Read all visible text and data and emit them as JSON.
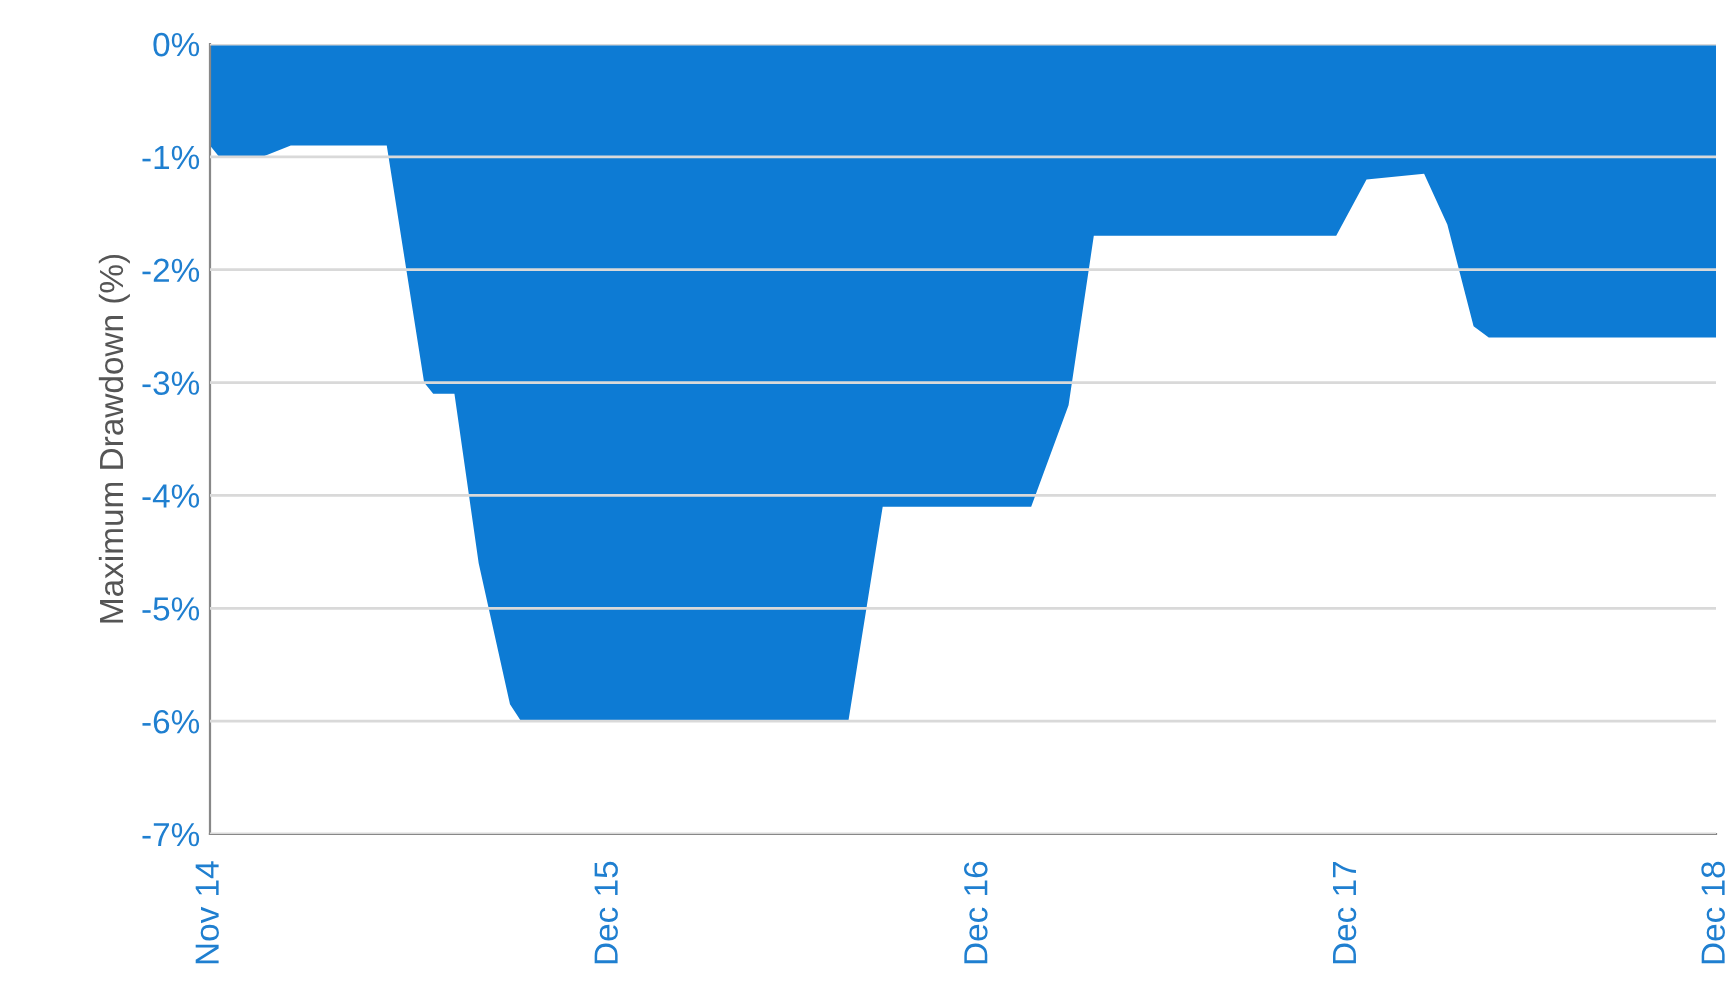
{
  "chart_data": {
    "type": "area",
    "ylabel": "Maximum Drawdown (%)",
    "x": [
      "2014-11-01",
      "2014-11-10",
      "2014-12-23",
      "2015-01-20",
      "2015-04-25",
      "2015-06-01",
      "2015-06-10",
      "2015-07-01",
      "2015-07-25",
      "2015-08-25",
      "2015-09-05",
      "2016-07-25",
      "2016-08-28",
      "2017-01-22",
      "2017-02-28",
      "2017-03-25",
      "2017-11-20",
      "2017-12-20",
      "2018-02-15",
      "2018-03-10",
      "2018-04-05",
      "2018-04-20",
      "2018-12-01"
    ],
    "series": [
      {
        "color": "#0d7bd4",
        "values": [
          -0.9,
          -1.0,
          -1.0,
          -0.9,
          -0.9,
          -3.0,
          -3.1,
          -3.1,
          -4.6,
          -5.85,
          -6.0,
          -6.0,
          -4.1,
          -4.1,
          -3.2,
          -1.7,
          -1.7,
          -1.2,
          -1.15,
          -1.6,
          -2.5,
          -2.6,
          -2.6
        ]
      }
    ],
    "xlim": [
      "2014-11-01",
      "2018-12-01"
    ],
    "xticks": [
      {
        "value": "2014-11-01",
        "label": "Nov 14"
      },
      {
        "value": "2015-12-01",
        "label": "Dec 15"
      },
      {
        "value": "2016-12-01",
        "label": "Dec 16"
      },
      {
        "value": "2017-12-01",
        "label": "Dec 17"
      },
      {
        "value": "2018-12-01",
        "label": "Dec 18"
      }
    ],
    "ylim": [
      -7,
      0
    ],
    "yticks": [
      {
        "value": 0,
        "label": "0%"
      },
      {
        "value": -1,
        "label": "-1%"
      },
      {
        "value": -2,
        "label": "-2%"
      },
      {
        "value": -3,
        "label": "-3%"
      },
      {
        "value": -4,
        "label": "-4%"
      },
      {
        "value": -5,
        "label": "-5%"
      },
      {
        "value": -6,
        "label": "-6%"
      },
      {
        "value": -7,
        "label": "-7%"
      }
    ],
    "grid": "y",
    "legend": false
  }
}
